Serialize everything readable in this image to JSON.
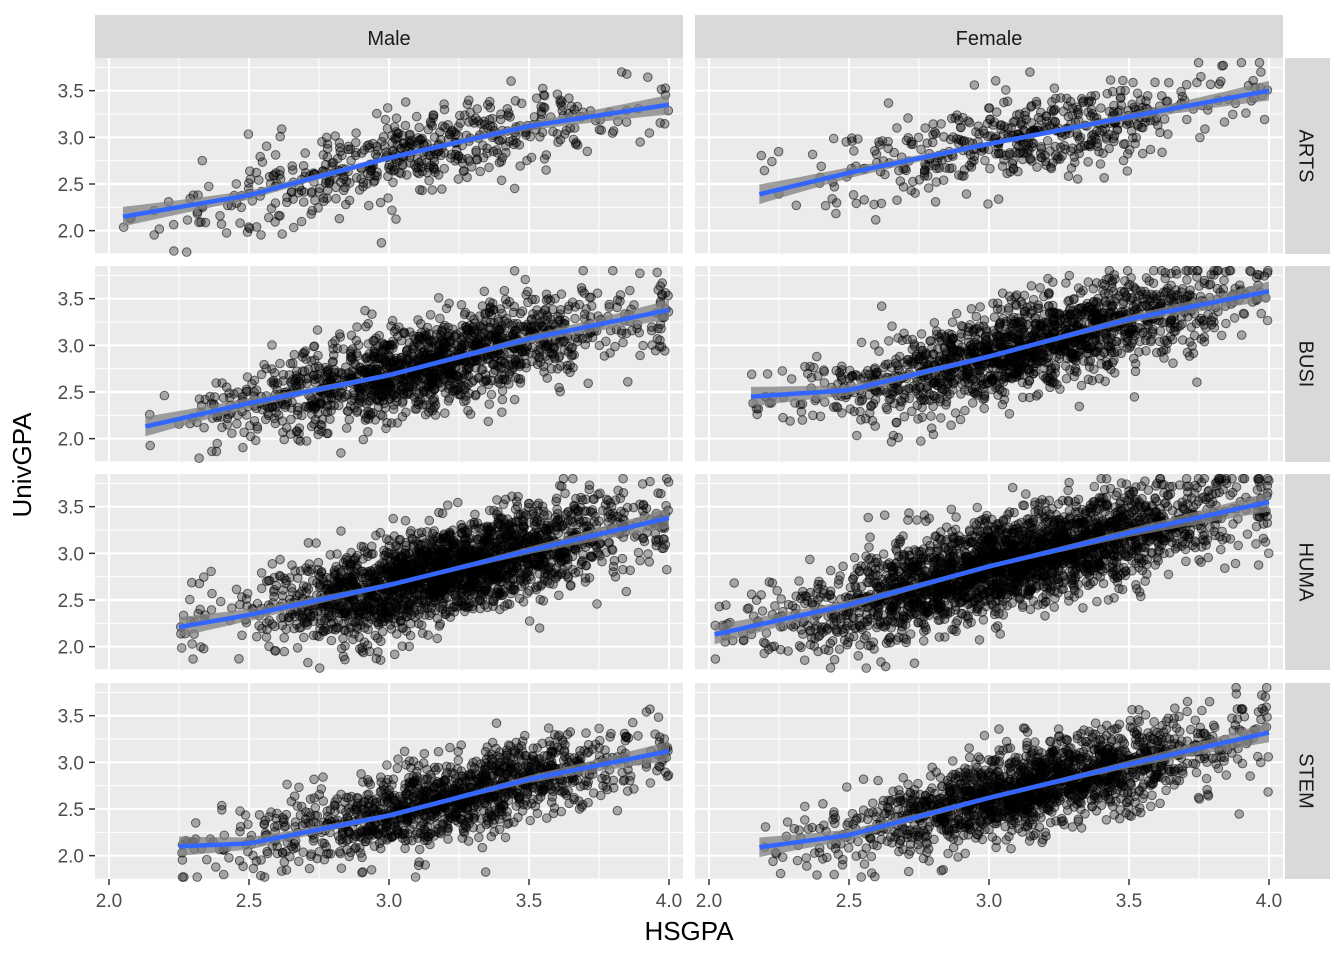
{
  "chart_data": {
    "type": "scatter",
    "xlabel": "HSGPA",
    "ylabel": "UnivGPA",
    "xlim": [
      1.95,
      4.05
    ],
    "ylim": [
      1.75,
      3.85
    ],
    "x_ticks": [
      "2.0",
      "2.5",
      "3.0",
      "3.5",
      "4.0"
    ],
    "y_ticks": [
      "2.0",
      "2.5",
      "3.0",
      "3.5"
    ],
    "x_tick_values": [
      2.0,
      2.5,
      3.0,
      3.5,
      4.0
    ],
    "y_tick_values": [
      2.0,
      2.5,
      3.0,
      3.5
    ],
    "columns": [
      "Male",
      "Female"
    ],
    "rows": [
      "ARTS",
      "BUSI",
      "HUMA",
      "STEM"
    ],
    "point_color": "#000000",
    "point_opacity": 0.3,
    "smooth_color": "#3366FF",
    "ribbon_color": "#808080",
    "panel_background": "#EBEBEB",
    "strip_background": "#D9D9D9",
    "grid": true,
    "legend": "none",
    "panels": [
      {
        "row": "ARTS",
        "col": "Male",
        "x_range": [
          2.05,
          4.0
        ],
        "n_points": 520,
        "point_spread": 0.22,
        "trend": [
          [
            2.05,
            2.15
          ],
          [
            2.5,
            2.38
          ],
          [
            3.0,
            2.78
          ],
          [
            3.5,
            3.12
          ],
          [
            4.0,
            3.35
          ]
        ]
      },
      {
        "row": "ARTS",
        "col": "Female",
        "x_range": [
          2.18,
          4.0
        ],
        "n_points": 520,
        "point_spread": 0.22,
        "trend": [
          [
            2.18,
            2.39
          ],
          [
            2.5,
            2.62
          ],
          [
            3.0,
            2.93
          ],
          [
            3.5,
            3.22
          ],
          [
            4.0,
            3.5
          ]
        ]
      },
      {
        "row": "BUSI",
        "col": "Male",
        "x_range": [
          2.13,
          4.0
        ],
        "n_points": 1500,
        "point_spread": 0.24,
        "trend": [
          [
            2.13,
            2.13
          ],
          [
            2.5,
            2.38
          ],
          [
            3.0,
            2.68
          ],
          [
            3.5,
            3.07
          ],
          [
            4.0,
            3.38
          ]
        ]
      },
      {
        "row": "BUSI",
        "col": "Female",
        "x_range": [
          2.15,
          4.0
        ],
        "n_points": 1600,
        "point_spread": 0.24,
        "trend": [
          [
            2.15,
            2.45
          ],
          [
            2.5,
            2.52
          ],
          [
            3.0,
            2.88
          ],
          [
            3.5,
            3.28
          ],
          [
            4.0,
            3.58
          ]
        ]
      },
      {
        "row": "HUMA",
        "col": "Male",
        "x_range": [
          2.25,
          4.0
        ],
        "n_points": 2200,
        "point_spread": 0.25,
        "trend": [
          [
            2.25,
            2.21
          ],
          [
            2.5,
            2.34
          ],
          [
            3.0,
            2.66
          ],
          [
            3.5,
            3.03
          ],
          [
            4.0,
            3.38
          ]
        ]
      },
      {
        "row": "HUMA",
        "col": "Female",
        "x_range": [
          2.02,
          4.0
        ],
        "n_points": 2600,
        "point_spread": 0.25,
        "trend": [
          [
            2.02,
            2.13
          ],
          [
            2.5,
            2.45
          ],
          [
            3.0,
            2.86
          ],
          [
            3.5,
            3.22
          ],
          [
            4.0,
            3.55
          ]
        ]
      },
      {
        "row": "STEM",
        "col": "Male",
        "x_range": [
          2.25,
          4.0
        ],
        "n_points": 1300,
        "point_spread": 0.22,
        "trend": [
          [
            2.25,
            2.1
          ],
          [
            2.5,
            2.13
          ],
          [
            3.0,
            2.43
          ],
          [
            3.5,
            2.82
          ],
          [
            4.0,
            3.12
          ]
        ]
      },
      {
        "row": "STEM",
        "col": "Female",
        "x_range": [
          2.18,
          4.0
        ],
        "n_points": 1700,
        "point_spread": 0.22,
        "trend": [
          [
            2.18,
            2.09
          ],
          [
            2.5,
            2.22
          ],
          [
            3.0,
            2.62
          ],
          [
            3.5,
            2.98
          ],
          [
            4.0,
            3.32
          ]
        ]
      }
    ]
  }
}
